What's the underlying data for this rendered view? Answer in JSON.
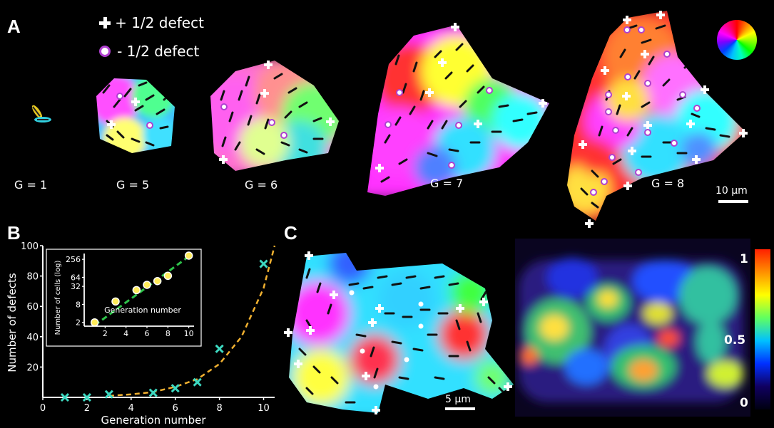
{
  "panel_a": {
    "letter": "A",
    "legend": {
      "plus_label": "+ 1/2 defect",
      "minus_label": "- 1/2 defect"
    },
    "generations": [
      {
        "label": "G = 1"
      },
      {
        "label": "G = 5"
      },
      {
        "label": "G = 6"
      },
      {
        "label": "G = 7"
      },
      {
        "label": "G = 8"
      }
    ],
    "scale_bar": "10 µm",
    "color_wheel_icon": "orientation-color-wheel-icon"
  },
  "panel_b": {
    "letter": "B"
  },
  "panel_c": {
    "letter": "C",
    "scale_bar": "5 µm",
    "colorbar": {
      "max_label": "1",
      "mid_label": "0.5",
      "min_label": "0"
    }
  },
  "colors": {
    "background": "#000000",
    "fit_curve": "#f0b030",
    "data_marker": "#3dd8c0",
    "inset_fit": "#2ec24a",
    "inset_marker_fill": "#ffec5a",
    "minus_defect_ring": "#b040d0"
  },
  "chart_data": [
    {
      "type": "scatter",
      "title": "",
      "xlabel": "Generation number",
      "ylabel": "Number of defects",
      "xlim": [
        0,
        10.5
      ],
      "ylim": [
        0,
        100
      ],
      "xticks": [
        0,
        2,
        4,
        6,
        8,
        10
      ],
      "yticks": [
        20,
        40,
        60,
        80,
        100
      ],
      "grid": false,
      "series": [
        {
          "marker": "x",
          "x": [
            1,
            2,
            3,
            5,
            6,
            7,
            8,
            10
          ],
          "y": [
            0,
            0,
            2,
            3,
            6,
            10,
            32,
            88
          ]
        }
      ],
      "fit": {
        "style": "dashed",
        "x": [
          3,
          4,
          5,
          6,
          7,
          8,
          9,
          10,
          10.5
        ],
        "y": [
          1,
          2,
          3.5,
          7,
          12,
          22,
          40,
          72,
          100
        ]
      }
    },
    {
      "type": "scatter",
      "title": "",
      "xlabel": "Generation number",
      "ylabel": "Number of cells (log)",
      "yscale": "log2",
      "xlim": [
        0,
        10.5
      ],
      "ylim": [
        1.5,
        400
      ],
      "xticks": [
        2,
        4,
        6,
        8,
        10
      ],
      "yticks": [
        2,
        8,
        32,
        64,
        256
      ],
      "grid": false,
      "series": [
        {
          "marker": "o",
          "x": [
            1,
            3,
            5,
            6,
            7,
            8,
            10
          ],
          "y": [
            2,
            10,
            24,
            36,
            48,
            72,
            340
          ]
        }
      ],
      "fit": {
        "style": "dashed",
        "x": [
          1,
          10.3
        ],
        "y": [
          1.6,
          380
        ]
      }
    }
  ]
}
